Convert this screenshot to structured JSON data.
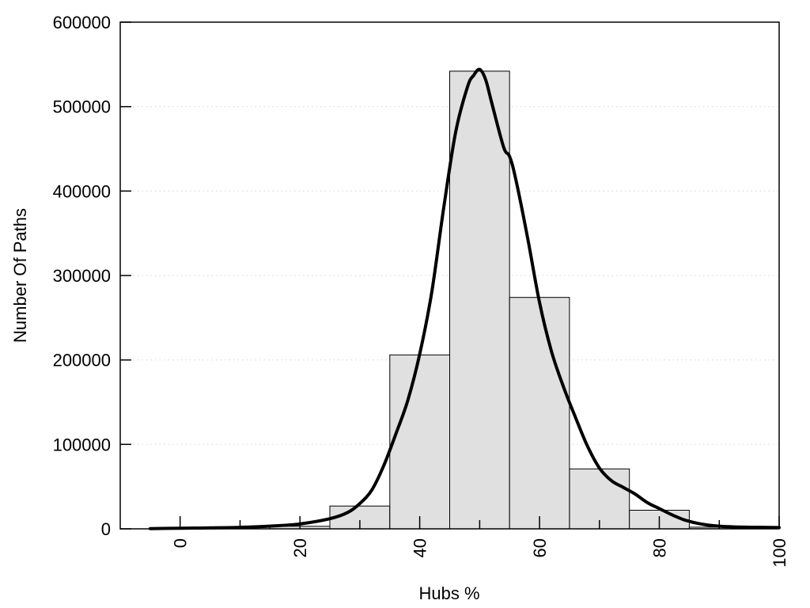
{
  "chart_data": {
    "type": "bar",
    "subtype": "histogram-with-fit-curve",
    "title": "",
    "xlabel": "Hubs %",
    "ylabel": "Number Of Paths",
    "xlim": [
      -10,
      100
    ],
    "ylim": [
      0,
      600000
    ],
    "x_tick_values": [
      0,
      20,
      40,
      60,
      80,
      100
    ],
    "x_tick_labels": [
      "0",
      "20",
      "40",
      "60",
      "80",
      "100"
    ],
    "x_minor_tick_values": [
      10,
      30,
      50,
      70,
      90
    ],
    "x_tick_label_rotation_deg": -90,
    "y_tick_values": [
      0,
      100000,
      200000,
      300000,
      400000,
      500000,
      600000
    ],
    "y_tick_labels": [
      "0",
      "100000",
      "200000",
      "300000",
      "400000",
      "500000",
      "600000"
    ],
    "grid": {
      "horizontal": true,
      "style": "dotted",
      "lines_at": [
        100000,
        200000,
        300000,
        400000,
        500000
      ]
    },
    "legend": {
      "visible": false
    },
    "bin_width": 10,
    "bins": [
      {
        "from": 15,
        "to": 25,
        "count": 3000
      },
      {
        "from": 25,
        "to": 35,
        "count": 27000
      },
      {
        "from": 35,
        "to": 45,
        "count": 206000
      },
      {
        "from": 45,
        "to": 55,
        "count": 542000
      },
      {
        "from": 55,
        "to": 65,
        "count": 274000
      },
      {
        "from": 65,
        "to": 75,
        "count": 71000
      },
      {
        "from": 75,
        "to": 85,
        "count": 22000
      },
      {
        "from": 85,
        "to": 95,
        "count": 2000
      },
      {
        "from": 95,
        "to": 100,
        "count": 1500
      }
    ],
    "curve": {
      "name": "fit-curve",
      "peak": {
        "x": 50,
        "y": 544000
      },
      "points": [
        [
          -5,
          300
        ],
        [
          0,
          700
        ],
        [
          5,
          1100
        ],
        [
          10,
          1800
        ],
        [
          15,
          3200
        ],
        [
          20,
          5800
        ],
        [
          25,
          12000
        ],
        [
          28,
          19500
        ],
        [
          30,
          30000
        ],
        [
          32,
          46000
        ],
        [
          34,
          75000
        ],
        [
          36,
          112000
        ],
        [
          38,
          152000
        ],
        [
          40,
          207000
        ],
        [
          42,
          280000
        ],
        [
          44,
          380000
        ],
        [
          46,
          470000
        ],
        [
          48,
          524000
        ],
        [
          49,
          537000
        ],
        [
          50,
          544000
        ],
        [
          51,
          532000
        ],
        [
          52,
          505000
        ],
        [
          54,
          452000
        ],
        [
          55,
          441000
        ],
        [
          56,
          415000
        ],
        [
          58,
          345000
        ],
        [
          60,
          268000
        ],
        [
          62,
          210000
        ],
        [
          64,
          168000
        ],
        [
          66,
          132000
        ],
        [
          68,
          98000
        ],
        [
          70,
          72000
        ],
        [
          72,
          57000
        ],
        [
          74,
          49000
        ],
        [
          76,
          41000
        ],
        [
          78,
          31000
        ],
        [
          80,
          24000
        ],
        [
          82,
          17000
        ],
        [
          84,
          11000
        ],
        [
          85,
          8900
        ],
        [
          86,
          7100
        ],
        [
          88,
          4600
        ],
        [
          90,
          3200
        ],
        [
          92,
          2400
        ],
        [
          95,
          1900
        ],
        [
          100,
          1500
        ]
      ]
    },
    "colors": {
      "bar_fill": "#e0e0e0",
      "bar_border": "#000000",
      "curve": "#000000",
      "grid": "#d4d4d4",
      "frame": "#000000",
      "text": "#000000",
      "background": "#ffffff"
    }
  }
}
